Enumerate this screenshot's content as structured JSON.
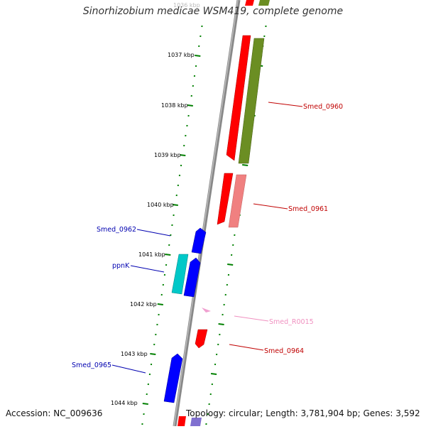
{
  "title": "Sinorhizobium medicae WSM419, complete genome",
  "footer": {
    "accession": "Accession: NC_009636",
    "stats": "Topology: circular; Length: 3,781,904 bp; Genes: 3,592"
  },
  "axis": {
    "top_faded_label": "1036 kbp",
    "labels": [
      "1037 kbp",
      "1038 kbp",
      "1039 kbp",
      "1040 kbp",
      "1041 kbp",
      "1042 kbp",
      "1043 kbp",
      "1044 kbp"
    ]
  },
  "genes": [
    {
      "name": "Smed_0960",
      "color": "#c00000"
    },
    {
      "name": "Smed_0961",
      "color": "#c00000"
    },
    {
      "name": "Smed_0962",
      "color": "#0000b0"
    },
    {
      "name": "ppnK",
      "color": "#0000b0"
    },
    {
      "name": "Smed_R0015",
      "color": "#f090c0"
    },
    {
      "name": "Smed_0964",
      "color": "#c00000"
    },
    {
      "name": "Smed_0965",
      "color": "#0000b0"
    }
  ],
  "colors": {
    "forward_strand": "#ff0000",
    "reverse_strand": "#0000ff",
    "olive_track": "#6b8e23",
    "salmon_track": "#f08080",
    "cyan_track": "#00c8c8",
    "rna_track": "#f0a0d0",
    "tick": "#008000",
    "backbone": "#888888"
  }
}
